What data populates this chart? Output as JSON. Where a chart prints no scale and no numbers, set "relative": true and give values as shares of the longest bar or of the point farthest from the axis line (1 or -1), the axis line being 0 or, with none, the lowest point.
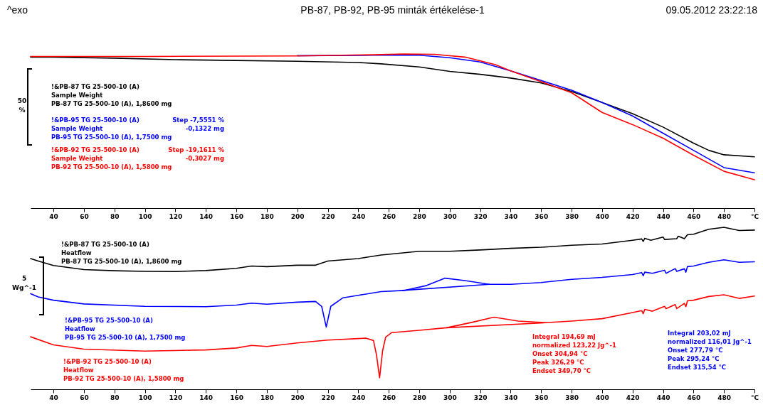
{
  "chart_data": [
    {
      "type": "line",
      "title": "PB-87, PB-92, PB-95 minták értékelése-1",
      "ylabel": "50\n%",
      "relative": true,
      "xlim": [
        25,
        500
      ],
      "xticks": [
        40,
        60,
        80,
        100,
        120,
        140,
        160,
        180,
        200,
        220,
        240,
        260,
        280,
        300,
        320,
        340,
        360,
        380,
        400,
        420,
        440,
        460,
        480,
        {
          "value": 500,
          "label": "°C"
        }
      ],
      "annotations": [
        "^exo",
        "09.05.2012 23:22:18",
        "Step -7,5551 %\n-0,1322 mg",
        "Step -19,1611 %\n-0,3027 mg"
      ],
      "series": [
        {
          "name": "!&PB-87 TG 25-500-10 (A)\nSample Weight\nPB-87 TG 25-500-10 (A), 1,8600 mg",
          "color": "#000000",
          "x": [
            25,
            40,
            80,
            120,
            160,
            200,
            240,
            255,
            280,
            300,
            320,
            340,
            360,
            380,
            400,
            420,
            440,
            460,
            470,
            480,
            500
          ],
          "values": [
            0.98,
            0.98,
            0.973,
            0.963,
            0.958,
            0.953,
            0.945,
            0.936,
            0.916,
            0.887,
            0.868,
            0.844,
            0.812,
            0.757,
            0.685,
            0.613,
            0.526,
            0.422,
            0.375,
            0.346,
            0.333
          ]
        },
        {
          "name": "!&PB-95 TG 25-500-10 (A)\nSample Weight\nPB-95 TG 25-500-10 (A), 1,7500 mg",
          "color": "#0000ff",
          "x": [
            200,
            250,
            280,
            300,
            320,
            340,
            360,
            380,
            400,
            420,
            440,
            460,
            480,
            500
          ],
          "values": [
            0.989,
            0.992,
            0.992,
            0.976,
            0.948,
            0.891,
            0.828,
            0.765,
            0.685,
            0.598,
            0.486,
            0.375,
            0.263,
            0.229
          ]
        },
        {
          "name": "!&PB-92 TG 25-500-10 (A)\nSample Weight\nPB-92 TG 25-500-10 (A), 1,5800 mg",
          "color": "#ff0000",
          "x": [
            25,
            100,
            200,
            250,
            270,
            290,
            310,
            330,
            340,
            360,
            380,
            400,
            420,
            440,
            460,
            480,
            500
          ],
          "values": [
            0.984,
            0.984,
            0.987,
            0.995,
            1,
            0.998,
            0.98,
            0.931,
            0.891,
            0.82,
            0.749,
            0.621,
            0.542,
            0.454,
            0.343,
            0.239,
            0.184
          ]
        }
      ]
    },
    {
      "type": "line",
      "ylabel": "5\nWg^-1",
      "relative": true,
      "xlim": [
        25,
        500
      ],
      "xticks": [
        40,
        60,
        80,
        100,
        120,
        140,
        160,
        180,
        200,
        220,
        240,
        260,
        280,
        300,
        320,
        340,
        360,
        380,
        400,
        420,
        440,
        460,
        480,
        {
          "value": 500,
          "label": "°C"
        }
      ],
      "annotations": [
        "Integral 194,69 mJ\n  normalized 123,22 Jg^-1\nOnset 304,94 °C\nPeak 326,29 °C\nEndset 349,70 °C",
        "Integral 203,02 mJ\n  normalized 116,01 Jg^-1\nOnset 277,79 °C\nPeak 295,24 °C\nEndset 315,54 °C"
      ],
      "series": [
        {
          "name": "!&PB-87 TG 25-500-10 (A)\nHeatflow\nPB-87 TG 25-500-10 (A), 1,8600 mg",
          "color": "#000000",
          "x": [
            25,
            30,
            40,
            60,
            80,
            100,
            120,
            140,
            160,
            170,
            180,
            200,
            212,
            220,
            240,
            255,
            280,
            300,
            320,
            340,
            360,
            380,
            400,
            420,
            426,
            427,
            428,
            432,
            440,
            441,
            449,
            450,
            454,
            456,
            460,
            470,
            480,
            490,
            500
          ],
          "values": [
            0.807,
            0.792,
            0.764,
            0.739,
            0.732,
            0.728,
            0.727,
            0.733,
            0.747,
            0.761,
            0.757,
            0.766,
            0.766,
            0.792,
            0.807,
            0.829,
            0.852,
            0.852,
            0.86,
            0.87,
            0.877,
            0.889,
            0.897,
            0.92,
            0.928,
            0.913,
            0.932,
            0.92,
            0.94,
            0.925,
            0.93,
            0.945,
            0.93,
            0.954,
            0.957,
            0.988,
            1,
            0.98,
            0.983
          ]
        },
        {
          "name": "!&PB-95 TG 25-500-10 (A)\nHeatflow\nPB-95 TG 25-500-10 (A), 1,7500 mg",
          "color": "#0000ff",
          "x": [
            25,
            30,
            40,
            60,
            100,
            140,
            160,
            170,
            180,
            200,
            212,
            216,
            219,
            222,
            230,
            240,
            255,
            270,
            285,
            297,
            310,
            326,
            340,
            360,
            380,
            400,
            420,
            426,
            427,
            428,
            433,
            441,
            442,
            448,
            449,
            454,
            455,
            456,
            460,
            470,
            480,
            490,
            500
          ],
          "values": [
            0.59,
            0.57,
            0.55,
            0.527,
            0.512,
            0.51,
            0.52,
            0.532,
            0.525,
            0.538,
            0.542,
            0.512,
            0.384,
            0.512,
            0.565,
            0.58,
            0.603,
            0.61,
            0.641,
            0.686,
            0.671,
            0.648,
            0.648,
            0.659,
            0.679,
            0.691,
            0.708,
            0.72,
            0.701,
            0.723,
            0.716,
            0.735,
            0.716,
            0.745,
            0.728,
            0.744,
            0.723,
            0.757,
            0.761,
            0.784,
            0.799,
            0.784,
            0.787
          ]
        },
        {
          "name": "!&PB-92 TG 25-500-10 (A)\nHeatflow\nPB-92 TG 25-500-10 (A), 1,5800 mg",
          "color": "#ff0000",
          "x": [
            25,
            40,
            60,
            100,
            140,
            160,
            170,
            180,
            200,
            220,
            240,
            245,
            250,
            252,
            254,
            256,
            258,
            262,
            280,
            298,
            315,
            329,
            345,
            363,
            380,
            400,
            420,
            426,
            427,
            428,
            433,
            441,
            442,
            448,
            449,
            454,
            455,
            456,
            460,
            470,
            480,
            490,
            500
          ],
          "values": [
            0.324,
            0.274,
            0.248,
            0.236,
            0.243,
            0.255,
            0.271,
            0.264,
            0.286,
            0.304,
            0.313,
            0.316,
            0.301,
            0.211,
            0.071,
            0.239,
            0.322,
            0.35,
            0.364,
            0.38,
            0.414,
            0.445,
            0.421,
            0.411,
            0.421,
            0.436,
            0.474,
            0.486,
            0.467,
            0.493,
            0.482,
            0.512,
            0.498,
            0.523,
            0.498,
            0.53,
            0.51,
            0.546,
            0.55,
            0.573,
            0.583,
            0.561,
            0.576
          ]
        },
        {
          "color": "#0000ff",
          "x": [
            269,
            326
          ],
          "values": [
            0.61,
            0.648
          ]
        },
        {
          "color": "#ff0000",
          "x": [
            298,
            363
          ],
          "values": [
            0.38,
            0.411
          ]
        }
      ]
    }
  ]
}
